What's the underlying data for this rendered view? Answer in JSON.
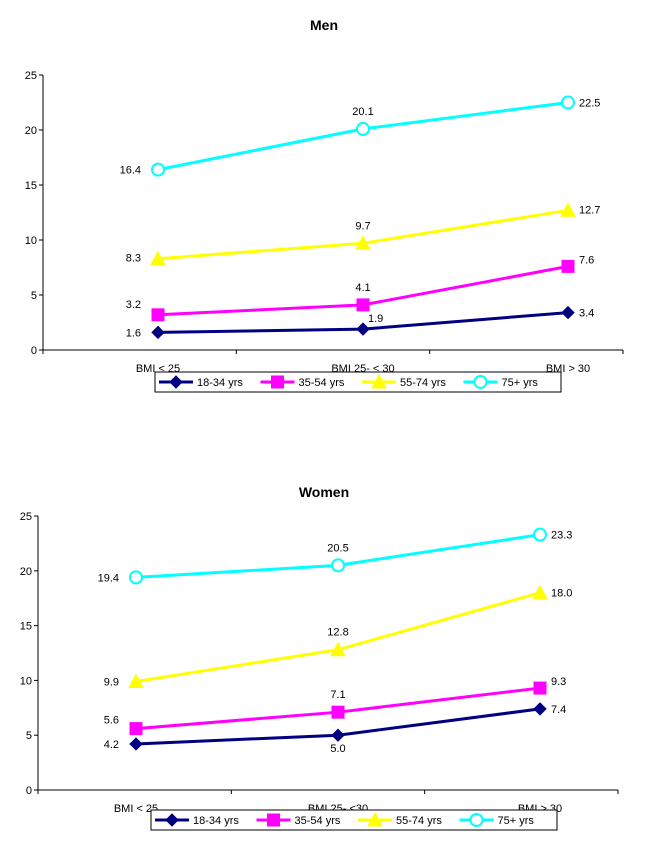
{
  "chart_data": [
    {
      "type": "line",
      "title": "Men",
      "categories": [
        "BMI < 25",
        "BMI 25- < 30",
        "BMI > 30"
      ],
      "ylim": [
        0,
        25
      ],
      "yticks": [
        "0",
        "5",
        "10",
        "15",
        "20",
        "25"
      ],
      "legend_position": "bottom",
      "series": [
        {
          "name": "18-34 yrs",
          "values": [
            1.6,
            1.9,
            3.4
          ],
          "labels": [
            "1.6",
            "1.9",
            "3.4"
          ],
          "color": "#000080",
          "marker": "diamond"
        },
        {
          "name": "35-54 yrs",
          "values": [
            3.2,
            4.1,
            7.6
          ],
          "labels": [
            "3.2",
            "4.1",
            "7.6"
          ],
          "color": "#ff00ff",
          "marker": "square"
        },
        {
          "name": "55-74 yrs",
          "values": [
            8.3,
            9.7,
            12.7
          ],
          "labels": [
            "8.3",
            "9.7",
            "12.7"
          ],
          "color": "#ffff00",
          "marker": "triangle"
        },
        {
          "name": "75+ yrs",
          "values": [
            16.4,
            20.1,
            22.5
          ],
          "labels": [
            "16.4",
            "20.1",
            "22.5"
          ],
          "color": "#00ffff",
          "marker": "circle"
        }
      ]
    },
    {
      "type": "line",
      "title": "Women",
      "categories": [
        "BMI < 25",
        "BMI 25- <30",
        "BMI > 30"
      ],
      "ylim": [
        0,
        25
      ],
      "yticks": [
        "0",
        "5",
        "10",
        "15",
        "20",
        "25"
      ],
      "legend_position": "bottom",
      "series": [
        {
          "name": "18-34 yrs",
          "values": [
            4.2,
            5.0,
            7.4
          ],
          "labels": [
            "4.2",
            "5.0",
            "7.4"
          ],
          "color": "#000080",
          "marker": "diamond"
        },
        {
          "name": "35-54 yrs",
          "values": [
            5.6,
            7.1,
            9.3
          ],
          "labels": [
            "5.6",
            "7.1",
            "9.3"
          ],
          "color": "#ff00ff",
          "marker": "square"
        },
        {
          "name": "55-74 yrs",
          "values": [
            9.9,
            12.8,
            18.0
          ],
          "labels": [
            "9.9",
            "12.8",
            "18.0"
          ],
          "color": "#ffff00",
          "marker": "triangle"
        },
        {
          "name": "75+ yrs",
          "values": [
            19.4,
            20.5,
            23.3
          ],
          "labels": [
            "19.4",
            "20.5",
            "23.3"
          ],
          "color": "#00ffff",
          "marker": "circle"
        }
      ]
    }
  ]
}
